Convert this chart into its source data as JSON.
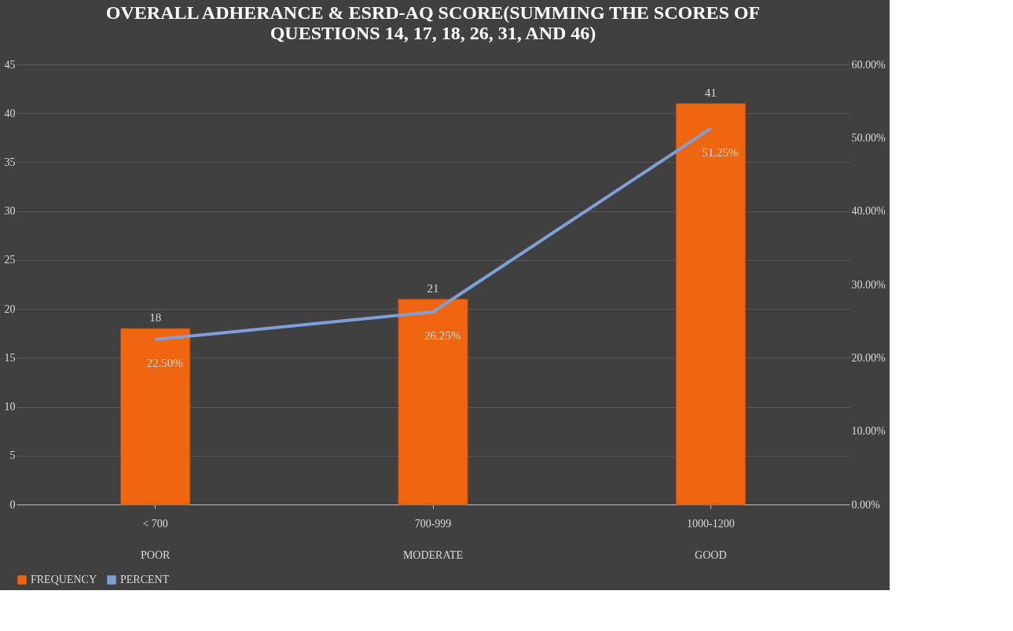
{
  "chart_data": {
    "type": "bar",
    "title": "OVERALL ADHERANCE & ESRD-AQ SCORE(SUMMING THE SCORES OF QUESTIONS 14, 17, 18, 26, 31, AND 46)",
    "categories": [
      "< 700\nPOOR",
      "700-999\nMODERATE",
      "1000-1200\nGOOD"
    ],
    "series": [
      {
        "name": "FREQUENCY",
        "color": "#f0650f",
        "values": [
          18,
          21,
          41
        ],
        "value_labels": [
          "18",
          "21",
          "41"
        ]
      },
      {
        "name": "PERCENT",
        "type": "line",
        "axis": "y2",
        "color": "#7f9fd8",
        "values": [
          22.5,
          26.25,
          51.25
        ],
        "value_labels": [
          "22.50%",
          "26.25%",
          "51.25%"
        ]
      }
    ],
    "ylim": [
      0,
      45
    ],
    "yticks": [
      0,
      5,
      10,
      15,
      20,
      25,
      30,
      35,
      40,
      45
    ],
    "y2lim": [
      0,
      60
    ],
    "y2ticks": [
      {
        "value": 0,
        "label": "0.00%"
      },
      {
        "value": 10,
        "label": "10.00%"
      },
      {
        "value": 20,
        "label": "20.00%"
      },
      {
        "value": 30,
        "label": "30.00%"
      },
      {
        "value": 40,
        "label": "40.00%"
      },
      {
        "value": 50,
        "label": "50.00%"
      },
      {
        "value": 60,
        "label": "60.00%"
      }
    ],
    "grid": "y",
    "legend": "bottom",
    "marker": "none",
    "line_style": "solid"
  }
}
